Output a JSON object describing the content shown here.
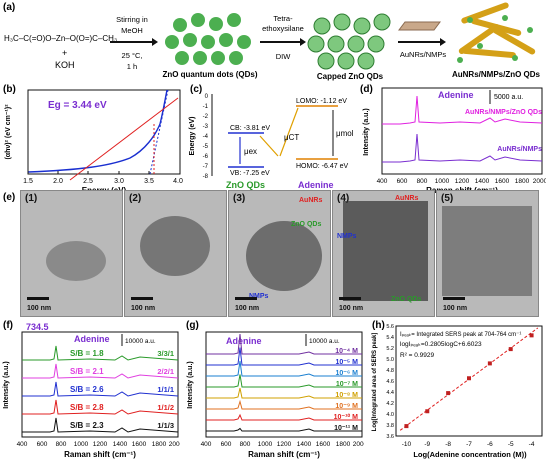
{
  "panel_labels": {
    "a": "(a)",
    "b": "(b)",
    "c": "(c)",
    "d": "(d)",
    "e": "(e)",
    "f": "(f)",
    "g": "(g)",
    "h": "(h)"
  },
  "a": {
    "reactant_chem": "H₃C–C(=O)O–Zn–O(O=)C–CH₃",
    "plus": "+",
    "koh": "KOH",
    "step1": [
      "Stirring in",
      "MeOH",
      "25 °C,",
      "1 h"
    ],
    "step2": [
      "Tetra-",
      "ethoxysilane",
      "DIW"
    ],
    "product1": "ZnO quantum dots (QDs)",
    "product2": "Capped ZnO QDs",
    "step3": "AuNRs/NMPs",
    "product3": "AuNRs/NMPs/ZnO QDs"
  },
  "b": {
    "eg": "Eg = 3.44 eV",
    "ylabel": "(αhν)² (eV cm⁻¹)²",
    "xlabel": "Energy (eV)",
    "xticks": [
      "1.5",
      "2.0",
      "2.5",
      "3.0",
      "3.5",
      "4.0"
    ]
  },
  "c": {
    "ylabel": "Energy (eV)",
    "yticks": [
      "0",
      "-1",
      "-2",
      "-3",
      "-4",
      "-5",
      "-6",
      "-7",
      "-8"
    ],
    "cb": "CB: -3.81 eV",
    "vb": "VB: -7.25 eV",
    "lumo": "LOMO: -1.12 eV",
    "homo": "HOMO: -6.47 eV",
    "mu_ex": "μex",
    "mu_ct": "μCT",
    "mu_mol": "μmol",
    "zno": "ZnO QDs",
    "adenine": "Adenine"
  },
  "d": {
    "title": "Adenine",
    "scale": "5000 a.u.",
    "series1": "AuNRs/NMPs/ZnO QDs",
    "series2": "AuNRs/NMPs",
    "ylabel": "Intensity (a.u.)",
    "xlabel": "Raman shift (cm⁻¹)",
    "xticks": [
      "400",
      "600",
      "800",
      "1000",
      "1200",
      "1400",
      "1600",
      "1800",
      "2000"
    ]
  },
  "e": {
    "tiles": [
      {
        "idx": "(1)",
        "scale": "100 nm"
      },
      {
        "idx": "(2)",
        "scale": "100 nm"
      },
      {
        "idx": "(3)",
        "scale": "100 nm",
        "tags": [
          "AuNRs",
          "ZnO QDs",
          "NMPs"
        ]
      },
      {
        "idx": "(4)",
        "scale": "100 nm",
        "tags": [
          "AuNRs",
          "NMPs",
          "ZnO QDs"
        ]
      },
      {
        "idx": "(5)",
        "scale": "100 nm"
      }
    ]
  },
  "f": {
    "peak": "734.5",
    "title": "Adenine",
    "scale": "10000 a.u.",
    "rows": [
      {
        "sb": "S/B = 1.8",
        "ratio": "3/3/1",
        "color": "#2a9a2a"
      },
      {
        "sb": "S/B = 2.1",
        "ratio": "2/2/1",
        "color": "#e040e0"
      },
      {
        "sb": "S/B = 2.6",
        "ratio": "1/1/1",
        "color": "#2030d0"
      },
      {
        "sb": "S/B = 2.8",
        "ratio": "1/1/2",
        "color": "#e02020"
      },
      {
        "sb": "S/B = 2.3",
        "ratio": "1/1/3",
        "color": "#111111"
      }
    ],
    "ylabel": "Intensity (a.u.)",
    "xlabel": "Raman shift (cm⁻¹)",
    "xticks": [
      "400",
      "600",
      "800",
      "1000",
      "1200",
      "1400",
      "1600",
      "1800",
      "2000"
    ]
  },
  "g": {
    "title": "Adenine",
    "scale": "10000 a.u.",
    "rows": [
      {
        "conc": "10⁻⁴ M",
        "color": "#7030a0"
      },
      {
        "conc": "10⁻⁵ M",
        "color": "#2030d0"
      },
      {
        "conc": "10⁻⁶ M",
        "color": "#1a7fd0"
      },
      {
        "conc": "10⁻⁷ M",
        "color": "#2a9a2a"
      },
      {
        "conc": "10⁻⁸ M",
        "color": "#d0a000"
      },
      {
        "conc": "10⁻⁹ M",
        "color": "#e07020"
      },
      {
        "conc": "10⁻¹⁰ M",
        "color": "#e02020"
      },
      {
        "conc": "10⁻¹¹ M",
        "color": "#111111"
      }
    ],
    "ylabel": "Intensity (a.u.)",
    "xlabel": "Raman shift (cm⁻¹)",
    "xticks": [
      "400",
      "600",
      "800",
      "1000",
      "1200",
      "1400",
      "1600",
      "1800",
      "2000"
    ]
  },
  "h": {
    "line1": "Iₚₑₐₖ= Integrated SERS peak at 704-764 cm⁻¹",
    "line2": "logIₚₑₐₖ=0.2805logC+6.6023",
    "line3": "R² = 0.9929",
    "ylabel": "Log[Integrated area of SERS peak]",
    "xlabel": "Log(Adenine concentration (M))",
    "xticks": [
      "-10",
      "-9",
      "-8",
      "-7",
      "-6",
      "-5",
      "-4"
    ],
    "yticks": [
      "3.6",
      "3.8",
      "4.0",
      "4.2",
      "4.4",
      "4.6",
      "4.8",
      "5.0",
      "5.2",
      "5.4",
      "5.6"
    ]
  },
  "chart_data": [
    {
      "type": "scatter",
      "panel": "h",
      "xlabel": "Log(Adenine concentration (M))",
      "ylabel": "Log[Integrated area of SERS peak]",
      "x": [
        -10,
        -9,
        -8,
        -7,
        -6,
        -5,
        -4
      ],
      "y": [
        3.78,
        4.05,
        4.38,
        4.65,
        4.92,
        5.18,
        5.43
      ],
      "xlim": [
        -10.5,
        -3.5
      ],
      "ylim": [
        3.6,
        5.6
      ],
      "fit": {
        "slope": 0.2805,
        "intercept": 6.6023,
        "r2": 0.9929
      }
    },
    {
      "type": "line",
      "panel": "b",
      "xlabel": "Energy (eV)",
      "ylabel": "(αhν)² (eV cm⁻¹)²",
      "xlim": [
        1.5,
        4.0
      ],
      "bandgap": 3.44
    }
  ]
}
